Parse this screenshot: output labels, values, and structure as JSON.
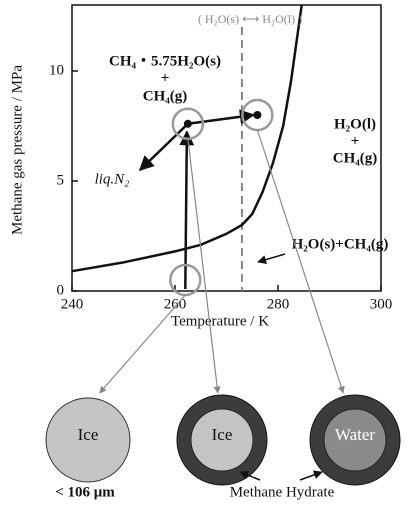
{
  "chart_data": {
    "type": "line",
    "x_label": "Temperature / K",
    "y_label": "Methane gas pressure / MPa",
    "xlim": [
      240,
      300
    ],
    "xticks": [
      240,
      260,
      280,
      300
    ],
    "ylim": [
      0,
      13
    ],
    "yticks": [
      0,
      5,
      10
    ],
    "x": [
      240,
      250,
      260,
      265,
      270,
      273,
      275,
      277,
      279,
      281,
      282.5,
      284,
      284.6
    ],
    "series": [
      {
        "color": "#111111",
        "values": [
          0.9,
          1.3,
          1.8,
          2.1,
          2.6,
          3.0,
          3.5,
          4.5,
          5.8,
          7.5,
          9.5,
          12,
          13
        ]
      }
    ],
    "melting_point": 273,
    "circled_states": [
      {
        "x": 262,
        "y": 0.5
      },
      {
        "x": 262.5,
        "y": 7.6
      },
      {
        "x": 276,
        "y": 8.0
      }
    ],
    "annotations": [
      "( H₂O(s) ⟷ H₂O(l) )",
      "CH₄・5.75H₂O(s)",
      "+",
      "CH₄(g)",
      "H₂O(l)",
      "+",
      "CH₄(g)",
      "liq.N₂",
      "H₂O(s)+CH₄(g)"
    ],
    "particles": [
      "Ice",
      "Ice",
      "Water"
    ],
    "size_note": "< 106 μm",
    "hydrate_label": "Methane Hydrate"
  }
}
